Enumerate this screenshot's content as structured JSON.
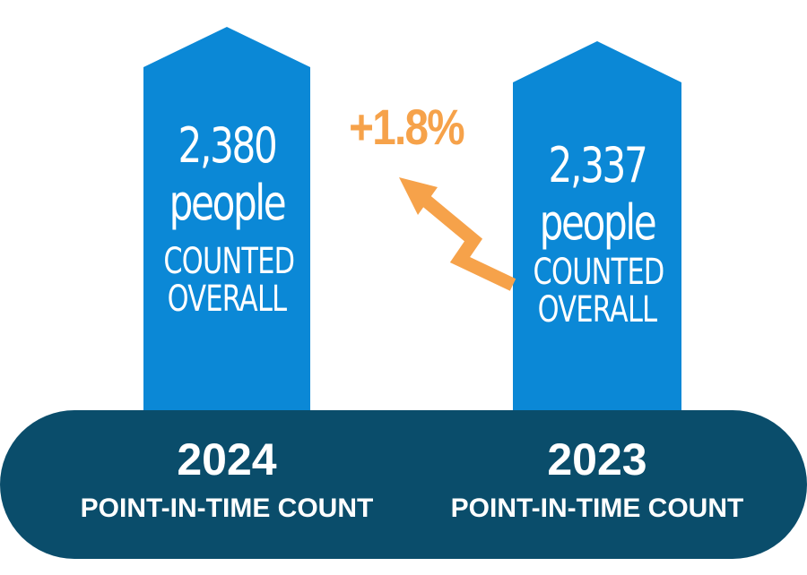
{
  "chart_data": {
    "type": "bar",
    "categories": [
      "2024",
      "2023"
    ],
    "values": [
      2380,
      2337
    ],
    "bars": [
      {
        "year": "2024",
        "value_label": "2,380",
        "unit": "people",
        "line1": "COUNTED",
        "line2": "OVERALL",
        "caption": "POINT-IN-TIME COUNT"
      },
      {
        "year": "2023",
        "value_label": "2,337",
        "unit": "people",
        "line1": "COUNTED",
        "line2": "OVERALL",
        "caption": "POINT-IN-TIME COUNT"
      }
    ],
    "change_label": "+1.8%"
  },
  "colors": {
    "bar": "#0b88d6",
    "base": "#0a4d6b",
    "accent": "#f6a24a"
  }
}
